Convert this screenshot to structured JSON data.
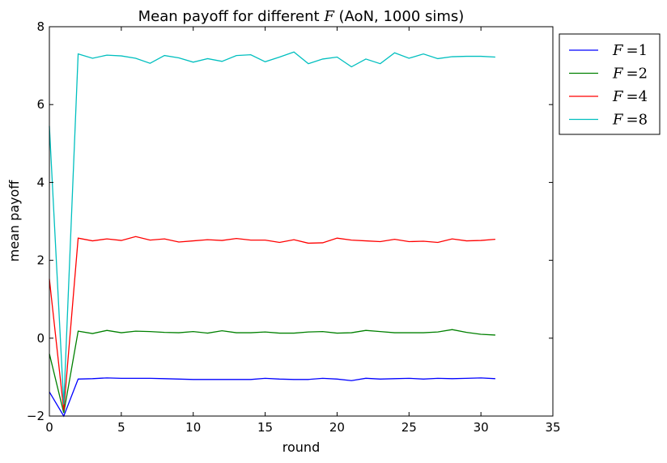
{
  "chart_data": {
    "type": "line",
    "title": {
      "prefix": "Mean payoff for different ",
      "variable": "F",
      "suffix": " (AoN, 1000 sims)"
    },
    "xlabel": "round",
    "ylabel": "mean payoff",
    "xlim": [
      0,
      35
    ],
    "ylim": [
      -2,
      8
    ],
    "xticks": [
      0,
      5,
      10,
      15,
      20,
      25,
      30,
      35
    ],
    "yticks": [
      -2,
      0,
      2,
      4,
      6,
      8
    ],
    "grid": false,
    "legend_position": "outside-right-top",
    "x": [
      0,
      1,
      2,
      3,
      4,
      5,
      6,
      7,
      8,
      9,
      10,
      11,
      12,
      13,
      14,
      15,
      16,
      17,
      18,
      19,
      20,
      21,
      22,
      23,
      24,
      25,
      26,
      27,
      28,
      29,
      30,
      31
    ],
    "series": [
      {
        "name": "F = 1",
        "legend_var": "F",
        "legend_op": "=",
        "legend_val": "1",
        "color": "#0000ff",
        "values": [
          -1.38,
          -2.0,
          -1.05,
          -1.04,
          -1.02,
          -1.03,
          -1.03,
          -1.03,
          -1.04,
          -1.05,
          -1.06,
          -1.06,
          -1.06,
          -1.06,
          -1.06,
          -1.03,
          -1.05,
          -1.06,
          -1.06,
          -1.03,
          -1.05,
          -1.09,
          -1.03,
          -1.05,
          -1.04,
          -1.03,
          -1.05,
          -1.03,
          -1.04,
          -1.03,
          -1.02,
          -1.04
        ]
      },
      {
        "name": "F = 2",
        "legend_var": "F",
        "legend_op": "=",
        "legend_val": "2",
        "color": "#008000",
        "values": [
          -0.4,
          -1.92,
          0.18,
          0.12,
          0.2,
          0.14,
          0.18,
          0.17,
          0.15,
          0.14,
          0.17,
          0.13,
          0.19,
          0.14,
          0.14,
          0.16,
          0.13,
          0.13,
          0.16,
          0.17,
          0.13,
          0.14,
          0.2,
          0.17,
          0.14,
          0.14,
          0.14,
          0.16,
          0.22,
          0.15,
          0.1,
          0.08
        ]
      },
      {
        "name": "F = 4",
        "legend_var": "F",
        "legend_op": "=",
        "legend_val": "4",
        "color": "#ff0000",
        "values": [
          1.52,
          -1.85,
          2.57,
          2.5,
          2.55,
          2.51,
          2.61,
          2.52,
          2.55,
          2.47,
          2.5,
          2.53,
          2.51,
          2.56,
          2.52,
          2.52,
          2.46,
          2.53,
          2.44,
          2.45,
          2.57,
          2.52,
          2.5,
          2.48,
          2.54,
          2.48,
          2.49,
          2.46,
          2.55,
          2.5,
          2.51,
          2.54
        ]
      },
      {
        "name": "F = 8",
        "legend_var": "F",
        "legend_op": "=",
        "legend_val": "8",
        "color": "#00bfbf",
        "values": [
          5.45,
          -1.7,
          7.3,
          7.19,
          7.27,
          7.25,
          7.19,
          7.06,
          7.26,
          7.2,
          7.09,
          7.18,
          7.11,
          7.26,
          7.28,
          7.1,
          7.22,
          7.35,
          7.05,
          7.17,
          7.22,
          6.97,
          7.17,
          7.05,
          7.33,
          7.19,
          7.3,
          7.18,
          7.23,
          7.24,
          7.24,
          7.22
        ]
      }
    ]
  }
}
